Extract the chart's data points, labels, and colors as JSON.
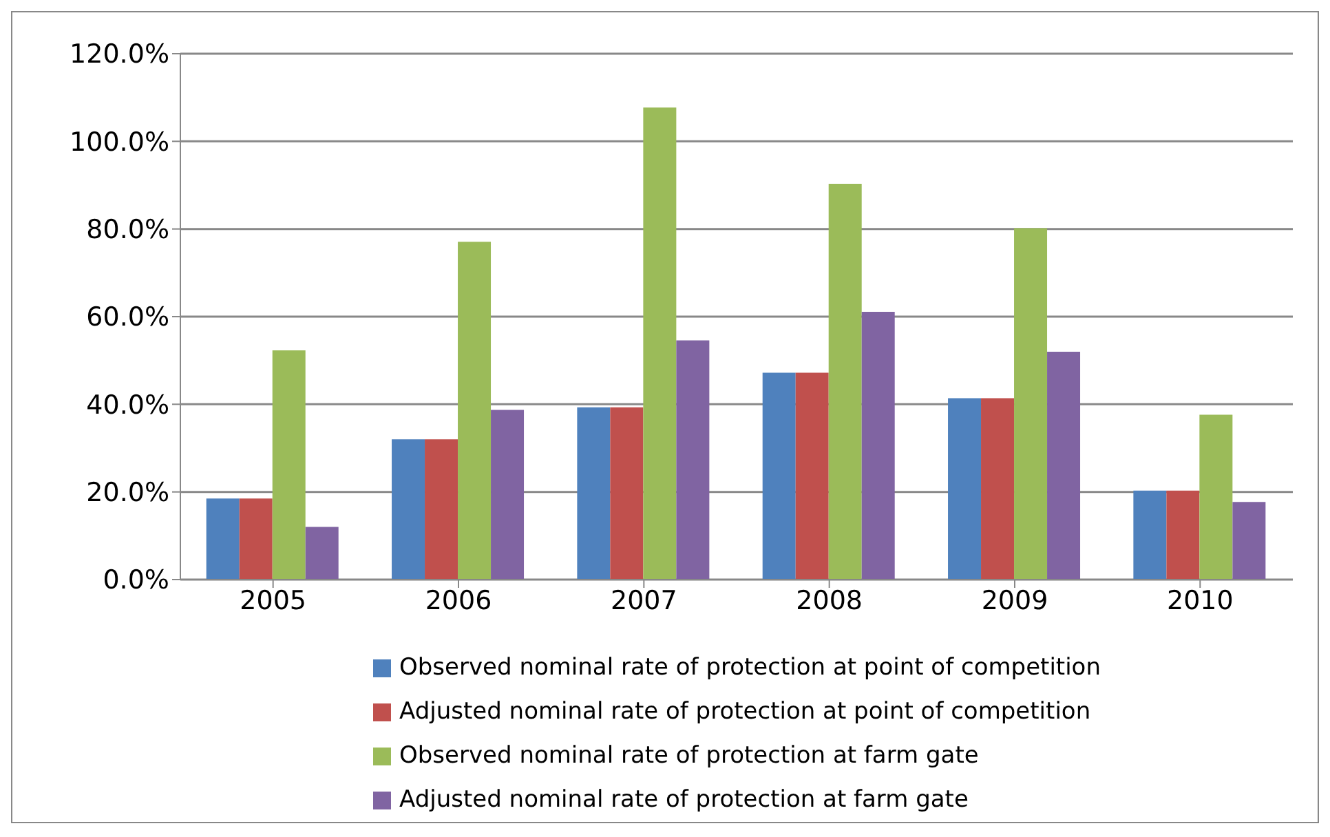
{
  "chart_data": {
    "type": "bar",
    "categories": [
      "2005",
      "2006",
      "2007",
      "2008",
      "2009",
      "2010"
    ],
    "series": [
      {
        "name": "Observed nominal rate of protection at point of competition",
        "color": "#4f81bd",
        "values": [
          18.5,
          32.0,
          39.3,
          47.2,
          41.4,
          20.3
        ]
      },
      {
        "name": "Adjusted nominal rate of protection at point of competition",
        "color": "#c0504d",
        "values": [
          18.5,
          32.0,
          39.3,
          47.2,
          41.4,
          20.3
        ]
      },
      {
        "name": "Observed nominal rate of protection at farm gate",
        "color": "#9bbb59",
        "values": [
          52.3,
          77.1,
          107.7,
          90.3,
          80.2,
          37.6
        ]
      },
      {
        "name": "Adjusted nominal rate of protection at farm gate",
        "color": "#8064a2",
        "values": [
          12.0,
          38.7,
          54.6,
          61.1,
          52.0,
          17.7
        ]
      }
    ],
    "ylim": [
      0,
      120
    ],
    "yticks": [
      {
        "value": 0,
        "label": "0.0%"
      },
      {
        "value": 20,
        "label": "20.0%"
      },
      {
        "value": 40,
        "label": "40.0%"
      },
      {
        "value": 60,
        "label": "60.0%"
      },
      {
        "value": 80,
        "label": "80.0%"
      },
      {
        "value": 100,
        "label": "100.0%"
      },
      {
        "value": 120,
        "label": "120.0%"
      }
    ],
    "grid": "y",
    "legend": "bottom"
  }
}
